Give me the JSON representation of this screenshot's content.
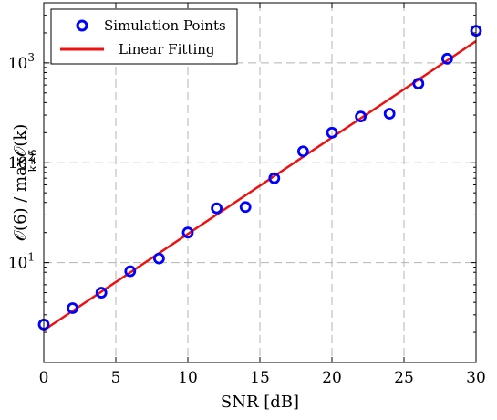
{
  "chart_data": {
    "type": "scatter",
    "xlabel": "SNR [dB]",
    "ylabel": "𝒪(6) / max𝒪(k)",
    "ylabel_sub": "k≠6",
    "xlim": [
      0,
      30
    ],
    "ylim": [
      1,
      4000
    ],
    "yscale": "log",
    "grid": true,
    "legend_position": "top-left",
    "x_ticks": [
      0,
      5,
      10,
      15,
      20,
      25,
      30
    ],
    "y_ticks": [
      {
        "value": 10,
        "base": "10",
        "exp": "1"
      },
      {
        "value": 100,
        "base": "10",
        "exp": "2"
      },
      {
        "value": 1000,
        "base": "10",
        "exp": "3"
      }
    ],
    "series": [
      {
        "name": "Simulation Points",
        "kind": "markers",
        "color": "#0000ff",
        "x": [
          0,
          2,
          4,
          6,
          8,
          10,
          12,
          14,
          16,
          18,
          20,
          22,
          24,
          26,
          28,
          30
        ],
        "y": [
          2.4,
          3.5,
          5.0,
          8.2,
          11.0,
          20.0,
          35.0,
          36.0,
          70.0,
          130.0,
          200.0,
          290.0,
          310.0,
          620.0,
          1100.0,
          2100.0
        ]
      },
      {
        "name": "Linear Fitting",
        "kind": "line",
        "color": "#ee1111",
        "x": [
          0,
          30
        ],
        "y": [
          2.1,
          1650.0
        ]
      }
    ]
  }
}
